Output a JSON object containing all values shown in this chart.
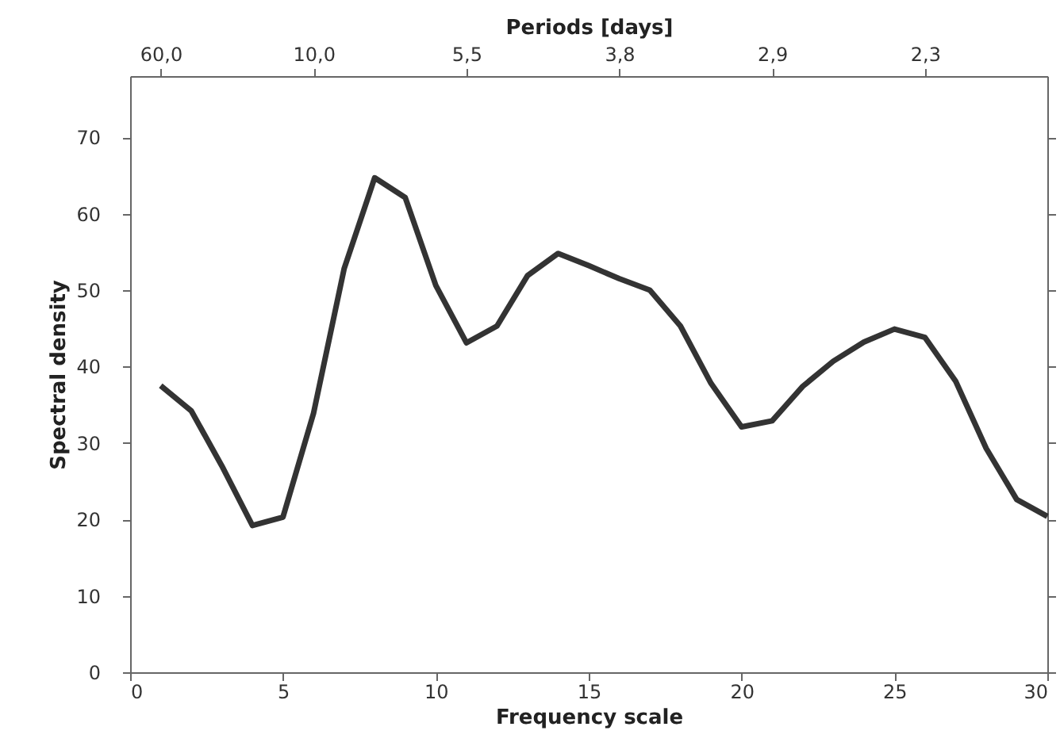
{
  "chart_data": {
    "type": "line",
    "xlabel": "Frequency scale",
    "ylabel": "Spectral density",
    "x2label": "Periods [days]",
    "x": [
      1,
      2,
      3,
      4,
      5,
      6,
      7,
      8,
      9,
      10,
      11,
      12,
      13,
      14,
      15,
      16,
      17,
      18,
      19,
      20,
      21,
      22,
      23,
      24,
      25,
      26,
      27,
      28,
      29,
      30
    ],
    "series": [
      {
        "color": "#333333",
        "values": [
          37.5,
          34.2,
          27,
          19.2,
          20.3,
          33.9,
          52.8,
          64.7,
          62.1,
          50.6,
          43.1,
          45.3,
          51.9,
          54.8,
          53.2,
          51.5,
          50,
          45.3,
          37.8,
          32.1,
          32.9,
          37.4,
          40.7,
          43.2,
          44.9,
          43.8,
          38.1,
          29.3,
          22.6,
          20.4
        ]
      }
    ],
    "xlim": [
      0,
      30
    ],
    "xticks": [
      0,
      5,
      10,
      15,
      20,
      25,
      30
    ],
    "ylim": [
      0,
      78
    ],
    "yticks": [
      0,
      10,
      20,
      30,
      40,
      50,
      60,
      70
    ],
    "annotations": [
      {
        "text": "60,0",
        "x": 1
      },
      {
        "text": "10,0",
        "x": 6
      },
      {
        "text": "5,5",
        "x": 11
      },
      {
        "text": "3,8",
        "x": 16
      },
      {
        "text": "2,9",
        "x": 21
      },
      {
        "text": "2,3",
        "x": 26
      }
    ],
    "grid": false,
    "marker": "none",
    "line_style": "solid"
  }
}
